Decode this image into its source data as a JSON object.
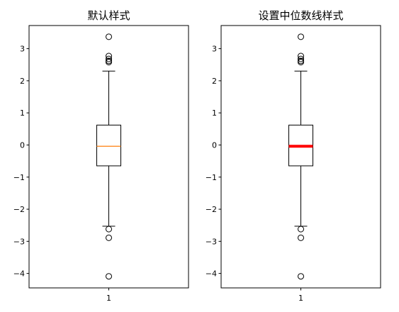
{
  "chart_data": [
    {
      "type": "boxplot",
      "title": "默认样式",
      "x_categories": [
        "1"
      ],
      "y_ticks": [
        -4,
        -3,
        -2,
        -1,
        0,
        1,
        2,
        3
      ],
      "ylim": [
        -4.45,
        3.72
      ],
      "boxes": [
        {
          "category": "1",
          "whisker_low": -2.53,
          "q1": -0.65,
          "median": -0.04,
          "q3": 0.62,
          "whisker_high": 2.3,
          "fliers": [
            3.37,
            2.77,
            2.68,
            2.62,
            2.58,
            -2.62,
            -2.89,
            -4.09
          ]
        }
      ],
      "median_style": {
        "color": "#ff7f0e",
        "linewidth": 1.2
      }
    },
    {
      "type": "boxplot",
      "title": "设置中位数线样式",
      "x_categories": [
        "1"
      ],
      "y_ticks": [
        -4,
        -3,
        -2,
        -1,
        0,
        1,
        2,
        3
      ],
      "ylim": [
        -4.45,
        3.72
      ],
      "boxes": [
        {
          "category": "1",
          "whisker_low": -2.53,
          "q1": -0.65,
          "median": -0.04,
          "q3": 0.62,
          "whisker_high": 2.3,
          "fliers": [
            3.37,
            2.77,
            2.68,
            2.62,
            2.58,
            -2.62,
            -2.89,
            -4.09
          ]
        }
      ],
      "median_style": {
        "color": "#ff0000",
        "linewidth": 4
      }
    }
  ]
}
